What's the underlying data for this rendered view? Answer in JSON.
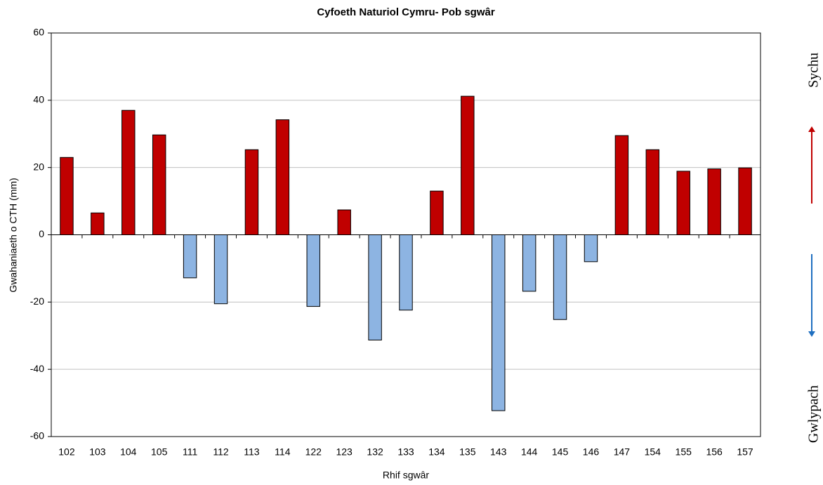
{
  "chart_data": {
    "type": "bar",
    "title": "Cyfoeth Naturiol Cymru- Pob sgwâr",
    "x_label": "Rhif sgwâr",
    "y_label": "Gwahaniaeth  o CTH (mm)",
    "annotations": [
      "Sychu",
      "Gwlypach"
    ],
    "categories": [
      "102",
      "103",
      "104",
      "105",
      "111",
      "112",
      "113",
      "114",
      "122",
      "123",
      "132",
      "133",
      "134",
      "135",
      "143",
      "144",
      "145",
      "146",
      "147",
      "154",
      "155",
      "156",
      "157"
    ],
    "values": [
      23,
      6.5,
      37,
      29.7,
      -12.8,
      -20.5,
      25.3,
      34.2,
      -21.3,
      7.4,
      -31.3,
      -22.4,
      13,
      41.2,
      -52.3,
      -16.8,
      -25.2,
      -8,
      29.5,
      25.3,
      18.9,
      19.6,
      19.9
    ],
    "positive_color": "#c00000",
    "negative_color": "#8db4e2",
    "ylim": [
      -60,
      60
    ],
    "yticks": [
      -60,
      -40,
      -20,
      0,
      20,
      40,
      60
    ],
    "grid": true
  }
}
